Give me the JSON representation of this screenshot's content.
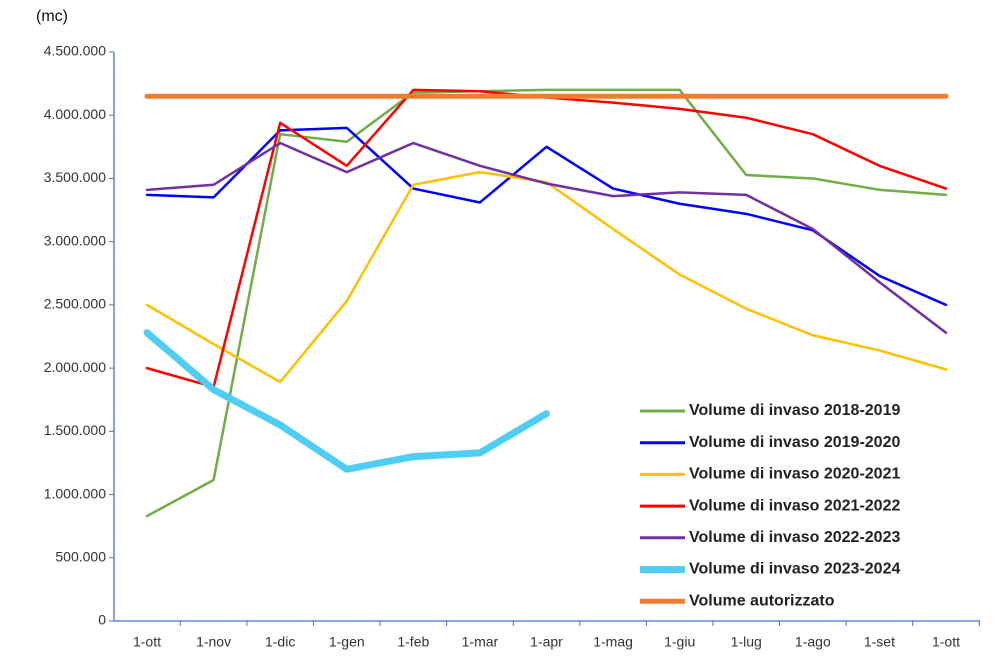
{
  "chart_data": {
    "type": "line",
    "y_label": "(mc)",
    "categories": [
      "1-ott",
      "1-nov",
      "1-dic",
      "1-gen",
      "1-feb",
      "1-mar",
      "1-apr",
      "1-mag",
      "1-giu",
      "1-lug",
      "1-ago",
      "1-set",
      "1-ott"
    ],
    "ylim": [
      0,
      4500000
    ],
    "yticks": [
      0,
      {
        "value": 500000,
        "label": "500.000"
      },
      {
        "value": 1000000,
        "label": "1.000.000"
      },
      {
        "value": 1500000,
        "label": "1.500.000"
      },
      {
        "value": 2000000,
        "label": "2.000.000"
      },
      {
        "value": 2500000,
        "label": "2.500.000"
      },
      {
        "value": 3000000,
        "label": "3.000.000"
      },
      {
        "value": 3500000,
        "label": "3.500.000"
      },
      {
        "value": 4000000,
        "label": "4.000.000"
      },
      {
        "value": 4500000,
        "label": "4.500.000"
      }
    ],
    "grid": false,
    "legend": "lower right",
    "series": [
      {
        "name": "Volume di invaso 2018-2019",
        "color": "#70ad47",
        "values": [
          830000,
          1115000,
          3850000,
          3790000,
          4180000,
          4190000,
          4200000,
          4200000,
          4200000,
          3527000,
          3500000,
          3410000,
          3370000
        ]
      },
      {
        "name": "Volume di invaso 2019-2020",
        "color": "#0000ff",
        "values": [
          3370000,
          3350000,
          3880000,
          3900000,
          3420000,
          3310000,
          3750000,
          3420000,
          3300000,
          3220000,
          3090000,
          2730000,
          2500000
        ]
      },
      {
        "name": "Volume di invaso 2020-2021",
        "color": "#ffc000",
        "values": [
          2500000,
          2190000,
          1890000,
          2530000,
          3450000,
          3550000,
          3470000,
          3100000,
          2740000,
          2470000,
          2260000,
          2140000,
          1990000
        ]
      },
      {
        "name": "Volume di invaso 2021-2022",
        "color": "#ff0000",
        "values": [
          2000000,
          1850000,
          3940000,
          3600000,
          4200000,
          4190000,
          4140000,
          4100000,
          4050000,
          3980000,
          3850000,
          3600000,
          3420000
        ]
      },
      {
        "name": "Volume di invaso 2022-2023",
        "color": "#7030a0",
        "values": [
          3410000,
          3450000,
          3780000,
          3550000,
          3780000,
          3600000,
          3460000,
          3360000,
          3390000,
          3370000,
          3100000,
          2680000,
          2280000
        ]
      },
      {
        "name": "Volume di invaso 2023-2024",
        "color": "#4fcdf3",
        "values": [
          2280000,
          1830000,
          1550000,
          1200000,
          1300000,
          1330000,
          1640000,
          null,
          null,
          null,
          null,
          null,
          null
        ]
      },
      {
        "name": "Volume autorizzato",
        "color": "#ed7d31",
        "values": [
          4150000,
          4150000,
          4150000,
          4150000,
          4150000,
          4150000,
          4150000,
          4150000,
          4150000,
          4150000,
          4150000,
          4150000,
          4150000
        ]
      }
    ]
  }
}
